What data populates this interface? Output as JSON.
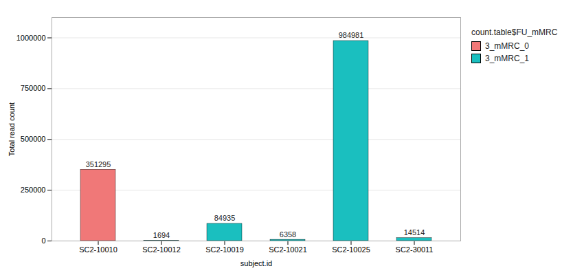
{
  "chart_data": {
    "type": "bar",
    "categories": [
      "SC2-10010",
      "SC2-10012",
      "SC2-10019",
      "SC2-10021",
      "SC2-10025",
      "SC2-30011"
    ],
    "series": [
      {
        "name": "3_mMRC_0",
        "color": "#F07878",
        "values": [
          351295,
          null,
          null,
          null,
          null,
          null
        ]
      },
      {
        "name": "3_mMRC_1",
        "color": "#1ABFBF",
        "values": [
          null,
          1694,
          84935,
          6358,
          984981,
          14514
        ]
      }
    ],
    "legend_title": "count.table$FU_mMRC",
    "xlabel": "subject.id",
    "ylabel": "Total read count",
    "ylim": [
      0,
      1100000
    ],
    "yticks": [
      0,
      250000,
      500000,
      750000,
      1000000
    ],
    "grid": true,
    "data_labels": true,
    "legend": "right"
  }
}
